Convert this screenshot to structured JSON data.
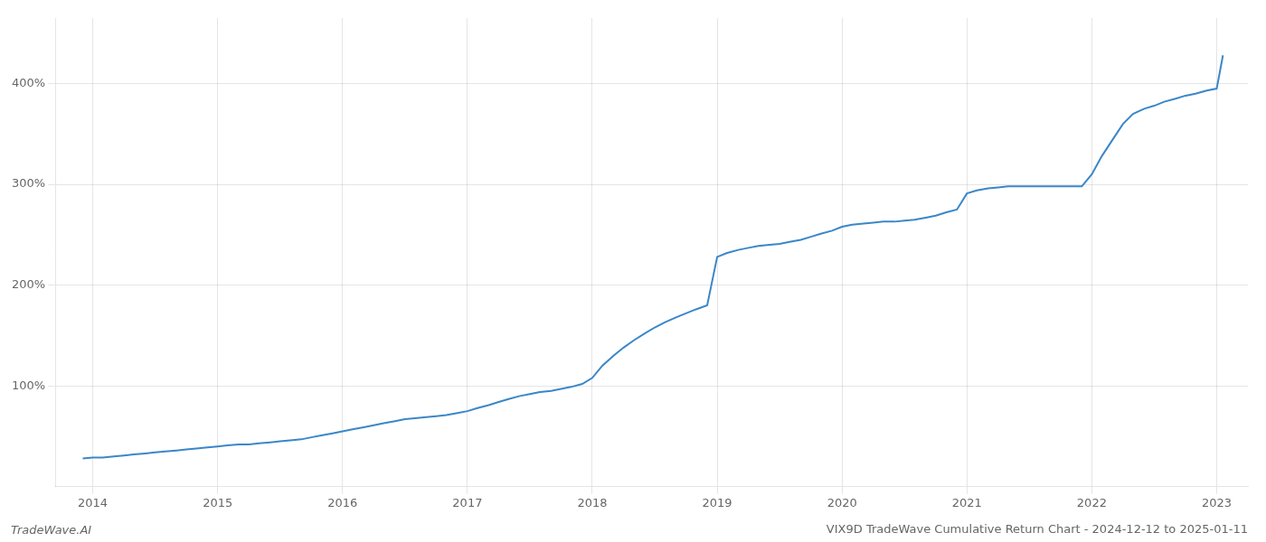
{
  "chart_data": {
    "type": "line",
    "title": "VIX9D TradeWave Cumulative Return Chart - 2024-12-12 to 2025-01-11",
    "annotations": [
      "TradeWave.AI"
    ],
    "color": "#3a87c8",
    "grid": true,
    "x": [
      2013.92,
      2014.0,
      2014.08,
      2014.17,
      2014.25,
      2014.33,
      2014.42,
      2014.5,
      2014.58,
      2014.67,
      2014.75,
      2014.83,
      2014.92,
      2015.0,
      2015.08,
      2015.17,
      2015.25,
      2015.33,
      2015.42,
      2015.5,
      2015.58,
      2015.67,
      2015.75,
      2015.83,
      2015.92,
      2016.0,
      2016.08,
      2016.17,
      2016.25,
      2016.33,
      2016.42,
      2016.5,
      2016.58,
      2016.67,
      2016.75,
      2016.83,
      2016.92,
      2017.0,
      2017.08,
      2017.17,
      2017.25,
      2017.33,
      2017.42,
      2017.5,
      2017.58,
      2017.67,
      2017.75,
      2017.83,
      2017.92,
      2018.0,
      2018.08,
      2018.17,
      2018.25,
      2018.33,
      2018.42,
      2018.5,
      2018.58,
      2018.67,
      2018.75,
      2018.83,
      2018.92,
      2019.0,
      2019.08,
      2019.17,
      2019.25,
      2019.33,
      2019.42,
      2019.5,
      2019.58,
      2019.67,
      2019.75,
      2019.83,
      2019.92,
      2020.0,
      2020.08,
      2020.17,
      2020.25,
      2020.33,
      2020.42,
      2020.5,
      2020.58,
      2020.67,
      2020.75,
      2020.83,
      2020.92,
      2021.0,
      2021.08,
      2021.17,
      2021.25,
      2021.33,
      2021.42,
      2021.5,
      2021.58,
      2021.67,
      2021.75,
      2021.83,
      2021.92,
      2022.0,
      2022.08,
      2022.17,
      2022.25,
      2022.33,
      2022.42,
      2022.5,
      2022.58,
      2022.67,
      2022.75,
      2022.83,
      2022.92,
      2023.0,
      2023.05
    ],
    "values": [
      28,
      29,
      29,
      30,
      31,
      32,
      33,
      34,
      35,
      36,
      37,
      38,
      39,
      40,
      41,
      42,
      42,
      43,
      44,
      45,
      46,
      47,
      49,
      51,
      53,
      55,
      57,
      59,
      61,
      63,
      65,
      67,
      68,
      69,
      70,
      71,
      73,
      75,
      78,
      81,
      84,
      87,
      90,
      92,
      94,
      95,
      97,
      99,
      102,
      108,
      120,
      130,
      138,
      145,
      152,
      158,
      163,
      168,
      172,
      176,
      180,
      228,
      232,
      235,
      237,
      239,
      240,
      241,
      243,
      245,
      248,
      251,
      254,
      258,
      260,
      261,
      262,
      263,
      263,
      264,
      265,
      267,
      269,
      272,
      275,
      291,
      294,
      296,
      297,
      298,
      298,
      298,
      298,
      298,
      298,
      298,
      298,
      310,
      328,
      345,
      360,
      370,
      375,
      378,
      382,
      385,
      388,
      390,
      393,
      395,
      428
    ],
    "xlim": [
      2013.7,
      2023.25
    ],
    "ylim": [
      0,
      465
    ],
    "xticks": [
      2014,
      2015,
      2016,
      2017,
      2018,
      2019,
      2020,
      2021,
      2022,
      2023
    ],
    "yticks": [
      {
        "value": 100,
        "label": "100%"
      },
      {
        "value": 200,
        "label": "200%"
      },
      {
        "value": 300,
        "label": "300%"
      },
      {
        "value": 400,
        "label": "400%"
      }
    ]
  }
}
